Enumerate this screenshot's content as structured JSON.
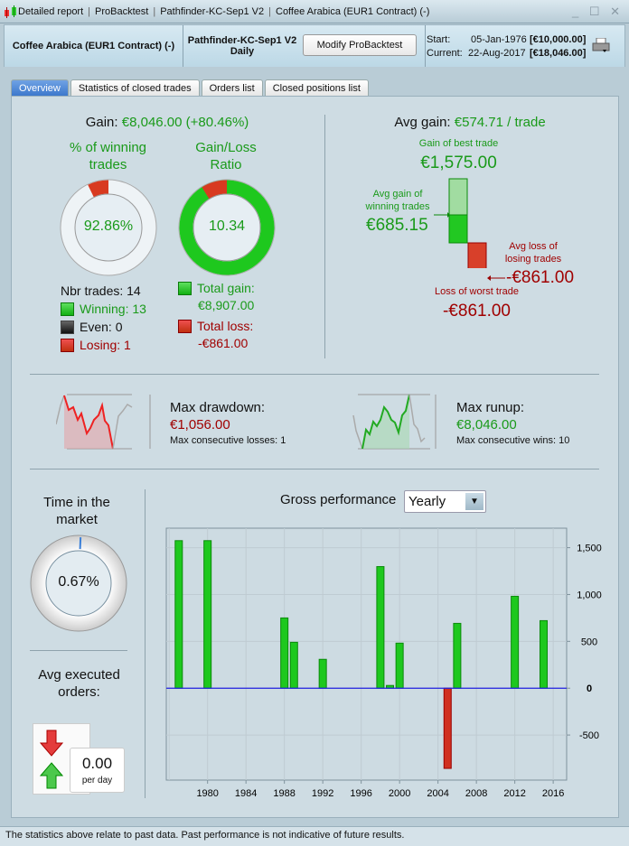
{
  "titlebar": {
    "items": [
      "Detailed report",
      "ProBacktest",
      "Pathfinder-KC-Sep1 V2",
      "Coffee Arabica (EUR1 Contract) (-)"
    ],
    "controls": "_ ☐ ✕"
  },
  "header": {
    "instrument": "Coffee Arabica (EUR1 Contract) (-)",
    "strategy": "Pathfinder-KC-Sep1 V2",
    "timeframe": "Daily",
    "modify_label": "Modify ProBacktest",
    "start_label": "Start:",
    "start_date": "05-Jan-1976",
    "start_value": "[€10,000.00]",
    "current_label": "Current:",
    "current_date": "22-Aug-2017",
    "current_value": "[€18,046.00]"
  },
  "tabs": [
    {
      "label": "Overview",
      "active": true
    },
    {
      "label": "Statistics of closed trades"
    },
    {
      "label": "Orders list"
    },
    {
      "label": "Closed positions list"
    }
  ],
  "gain": {
    "label": "Gain:",
    "value": "€8,046.00 (+80.46%)"
  },
  "winning": {
    "title": "% of winning trades",
    "value": "92.86%",
    "fraction": 0.9286
  },
  "ratio": {
    "title": "Gain/Loss Ratio",
    "value": "10.34",
    "loss_fraction": 0.088
  },
  "trades": {
    "nbr": "Nbr trades: 14",
    "winning": "Winning: 13",
    "even": "Even: 0",
    "losing": "Losing: 1"
  },
  "totals": {
    "gain_label": "Total gain:",
    "gain_value": "€8,907.00",
    "loss_label": "Total loss:",
    "loss_value": "-€861.00"
  },
  "avg": {
    "label": "Avg gain:",
    "value": "€574.71 / trade",
    "best_label": "Gain of best trade",
    "best_value": "€1,575.00",
    "avg_win_label": "Avg gain of winning trades",
    "avg_win_value": "€685.15",
    "avg_loss_label": "Avg loss of losing trades",
    "avg_loss_value": "-€861.00",
    "worst_label": "Loss of worst trade",
    "worst_value": "-€861.00"
  },
  "drawdown": {
    "label": "Max drawdown:",
    "value": "€1,056.00",
    "sub": "Max consecutive losses: 1"
  },
  "runup": {
    "label": "Max runup:",
    "value": "€8,046.00",
    "sub": "Max consecutive wins: 10"
  },
  "time_market": {
    "label": "Time in the market",
    "value": "0.67%",
    "fraction": 0.0067
  },
  "orders": {
    "label": "Avg executed orders:",
    "value": "0.00",
    "unit": "per day"
  },
  "perf": {
    "label": "Gross performance",
    "period": "Yearly"
  },
  "colors": {
    "positive": "#1ec81e",
    "negative": "#d03020",
    "zero_line": "#2020e0",
    "accent": "#3d78cc"
  },
  "chart_data": {
    "type": "bar",
    "x": [
      1977,
      1980,
      1988,
      1989,
      1992,
      1998,
      1999,
      2000,
      2005,
      2006,
      2012,
      2015
    ],
    "values": [
      1575,
      1575,
      750,
      490,
      308,
      1298,
      29,
      481,
      -856,
      692,
      981,
      721
    ],
    "xlim": [
      1975.7,
      2017.4
    ],
    "ylim": [
      -981,
      1708
    ],
    "xticks": [
      1980,
      1984,
      1988,
      1992,
      1996,
      2000,
      2004,
      2008,
      2012,
      2016
    ],
    "yticks": [
      -500,
      0,
      500,
      1000,
      1500
    ],
    "ytick_labels": [
      "-500",
      "0",
      "500",
      "1,000",
      "1,500"
    ],
    "grid": true,
    "yaxis_side": "right"
  },
  "footer": "The statistics above relate to past data. Past performance is not indicative of future results."
}
